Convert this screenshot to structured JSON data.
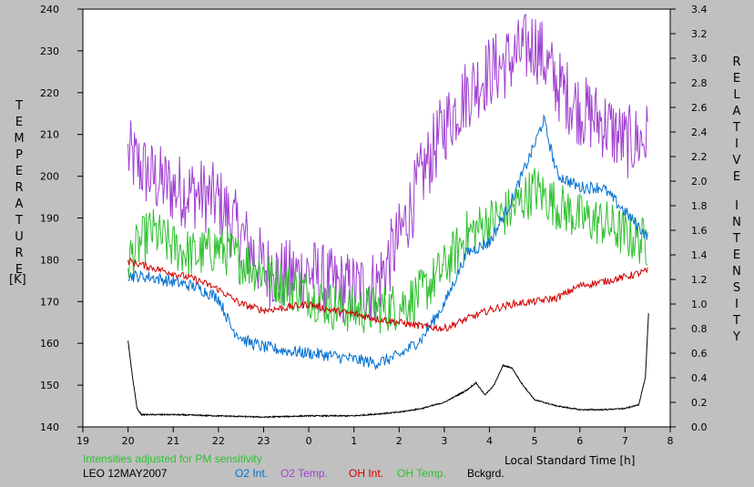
{
  "chart_data": {
    "type": "line",
    "left_axis_label": "TEMPERATURE",
    "left_axis_unit": "[K]",
    "right_axis_label": "RELATIVE INTENSITY",
    "xlabel": "Local Standard Time [h]",
    "note": "Intensities adjusted for PM sensitivity",
    "station_date": "LEO 12MAY2007",
    "x_ticks": [
      "19",
      "20",
      "21",
      "22",
      "23",
      "0",
      "1",
      "2",
      "3",
      "4",
      "5",
      "6",
      "7",
      "8"
    ],
    "left_ticks": [
      140,
      150,
      160,
      170,
      180,
      190,
      200,
      210,
      220,
      230,
      240
    ],
    "right_ticks": [
      "0.0",
      "0.2",
      "0.4",
      "0.6",
      "0.8",
      "1.0",
      "1.2",
      "1.4",
      "1.6",
      "1.8",
      "2.0",
      "2.2",
      "2.4",
      "2.6",
      "2.8",
      "3.0",
      "3.2",
      "3.4"
    ],
    "xlim": [
      19,
      32
    ],
    "ylim_left": [
      140,
      240
    ],
    "ylim_right": [
      0.0,
      3.4
    ],
    "legend": [
      {
        "label": "O2 Int.",
        "color": "#0070d0"
      },
      {
        "label": "O2 Temp.",
        "color": "#a040d0"
      },
      {
        "label": "OH Int.",
        "color": "#d00000"
      },
      {
        "label": "OH Temp.",
        "color": "#30c030"
      },
      {
        "label": "Bckgrd.",
        "color": "#000000"
      }
    ],
    "series": [
      {
        "name": "O2 Temp.",
        "axis": "left",
        "color": "#a040d0",
        "noise": 9,
        "x": [
          20.0,
          20.5,
          21.0,
          21.5,
          22.0,
          22.5,
          23.0,
          23.5,
          24.0,
          24.5,
          25.0,
          25.5,
          26.0,
          26.5,
          27.0,
          27.5,
          28.0,
          28.5,
          29.0,
          29.5,
          30.0,
          30.5,
          31.0,
          31.5
        ],
        "y": [
          205,
          200,
          197,
          196,
          194,
          186,
          178,
          176,
          177,
          174,
          173,
          174,
          185,
          200,
          212,
          220,
          225,
          228,
          232,
          222,
          216,
          213,
          208,
          209
        ]
      },
      {
        "name": "OH Temp.",
        "axis": "left",
        "color": "#30c030",
        "noise": 6,
        "x": [
          20.0,
          20.5,
          21.0,
          21.5,
          22.0,
          22.5,
          23.0,
          23.5,
          24.0,
          24.5,
          25.0,
          25.5,
          26.0,
          26.5,
          27.0,
          27.5,
          28.0,
          28.5,
          29.0,
          29.5,
          30.0,
          30.5,
          31.0,
          31.5
        ],
        "y": [
          180,
          187,
          183,
          181,
          183,
          180,
          177,
          174,
          172,
          169,
          168,
          168,
          169,
          172,
          178,
          186,
          189,
          192,
          197,
          193,
          190,
          189,
          186,
          184
        ]
      },
      {
        "name": "O2 Int.",
        "axis": "right",
        "color": "#0070d0",
        "noise": 0.05,
        "x": [
          20.0,
          20.5,
          21.0,
          21.5,
          22.0,
          22.3,
          22.6,
          23.0,
          23.5,
          24.0,
          24.5,
          25.0,
          25.5,
          26.0,
          26.5,
          27.0,
          27.5,
          28.0,
          28.5,
          29.0,
          29.2,
          29.5,
          30.0,
          30.5,
          31.0,
          31.5
        ],
        "y": [
          1.23,
          1.22,
          1.18,
          1.14,
          1.05,
          0.8,
          0.7,
          0.65,
          0.62,
          0.6,
          0.58,
          0.55,
          0.52,
          0.58,
          0.72,
          1.0,
          1.42,
          1.5,
          1.85,
          2.3,
          2.5,
          2.05,
          1.95,
          1.95,
          1.75,
          1.55
        ]
      },
      {
        "name": "OH Int.",
        "axis": "right",
        "color": "#d00000",
        "noise": 0.03,
        "x": [
          20.0,
          20.5,
          21.0,
          21.5,
          22.0,
          22.5,
          23.0,
          23.5,
          24.0,
          24.5,
          25.0,
          25.5,
          26.0,
          26.5,
          27.0,
          27.5,
          28.0,
          28.5,
          29.0,
          29.5,
          30.0,
          30.5,
          31.0,
          31.5
        ],
        "y": [
          1.35,
          1.3,
          1.25,
          1.2,
          1.12,
          1.0,
          0.95,
          0.97,
          1.0,
          0.95,
          0.92,
          0.88,
          0.85,
          0.82,
          0.8,
          0.88,
          0.95,
          1.0,
          1.02,
          1.05,
          1.15,
          1.18,
          1.22,
          1.27
        ]
      },
      {
        "name": "Bckgrd.",
        "axis": "right",
        "color": "#000000",
        "noise": 0.005,
        "x": [
          20.0,
          20.1,
          20.2,
          20.3,
          21.0,
          22.0,
          23.0,
          24.0,
          25.0,
          26.0,
          26.5,
          27.0,
          27.5,
          27.7,
          27.9,
          28.1,
          28.3,
          28.5,
          28.7,
          29.0,
          29.5,
          30.0,
          30.5,
          31.0,
          31.3,
          31.45,
          31.52
        ],
        "y": [
          0.7,
          0.4,
          0.15,
          0.1,
          0.1,
          0.09,
          0.08,
          0.09,
          0.09,
          0.12,
          0.15,
          0.2,
          0.3,
          0.36,
          0.26,
          0.34,
          0.5,
          0.48,
          0.36,
          0.22,
          0.17,
          0.14,
          0.14,
          0.15,
          0.18,
          0.4,
          0.92
        ]
      }
    ]
  }
}
